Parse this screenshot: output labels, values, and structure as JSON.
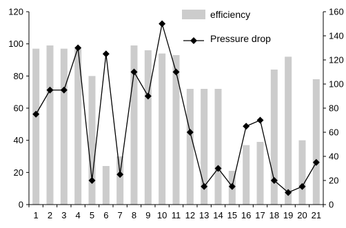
{
  "chart_data": {
    "type": "bar+line",
    "title": "",
    "xlabel": "",
    "ylabel_left": "",
    "ylabel_right": "",
    "categories": [
      "1",
      "2",
      "3",
      "4",
      "5",
      "6",
      "7",
      "8",
      "9",
      "10",
      "11",
      "12",
      "13",
      "14",
      "15",
      "16",
      "17",
      "18",
      "19",
      "20",
      "21"
    ],
    "series": [
      {
        "name": "efficiency",
        "type": "bar",
        "axis": "left",
        "color": "#cccccc",
        "values": [
          97,
          99,
          97,
          97,
          80,
          24,
          30,
          99,
          96,
          94,
          93,
          72,
          72,
          72,
          21,
          37,
          39,
          84,
          92,
          40,
          78
        ]
      },
      {
        "name": "Pressure drop",
        "type": "line",
        "axis": "right",
        "marker": "diamond",
        "color": "#000000",
        "values": [
          75,
          95,
          95,
          130,
          20,
          125,
          25,
          110,
          90,
          150,
          110,
          60,
          15,
          30,
          15,
          65,
          70,
          20,
          10,
          15,
          35
        ]
      }
    ],
    "y_left": {
      "min": 0,
      "max": 120,
      "ticks": [
        "0",
        "20",
        "40",
        "60",
        "80",
        "100",
        "120"
      ]
    },
    "y_right": {
      "min": 0,
      "max": 160,
      "ticks": [
        "0",
        "20",
        "40",
        "60",
        "80",
        "100",
        "120",
        "140",
        "160"
      ]
    },
    "grid": false,
    "legend_position": "top-right"
  }
}
